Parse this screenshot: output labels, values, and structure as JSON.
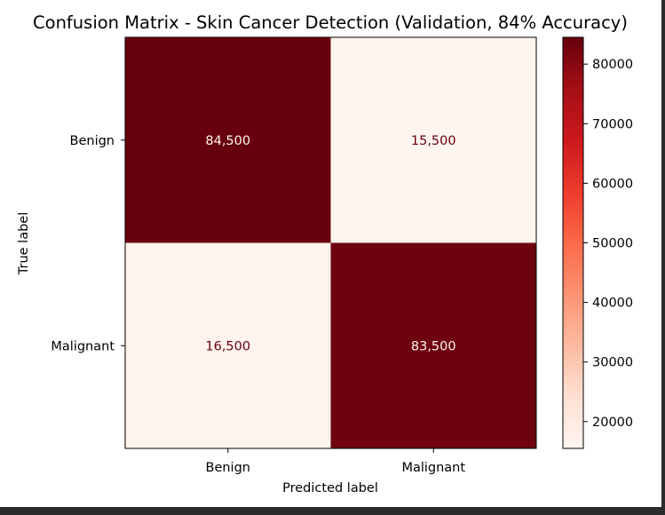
{
  "chart_data": {
    "type": "heatmap",
    "title": "Confusion Matrix - Skin Cancer Detection (Validation, 84% Accuracy)",
    "xlabel": "Predicted label",
    "ylabel": "True label",
    "x_categories": [
      "Benign",
      "Malignant"
    ],
    "y_categories": [
      "Benign",
      "Malignant"
    ],
    "values": [
      [
        84500,
        15500
      ],
      [
        16500,
        83500
      ]
    ],
    "cell_labels": [
      [
        "84,500",
        "15,500"
      ],
      [
        "16,500",
        "83,500"
      ]
    ],
    "colormap": "Reds",
    "colorbar": {
      "range": [
        15500,
        84500
      ],
      "ticks": [
        20000,
        30000,
        40000,
        50000,
        60000,
        70000,
        80000
      ],
      "tick_labels": [
        "20000",
        "30000",
        "40000",
        "50000",
        "60000",
        "70000",
        "80000"
      ]
    },
    "colors": {
      "high": "#67000d",
      "low": "#fff5f0",
      "text_on_dark": "#fff5f0",
      "text_on_light": "#67000d"
    }
  }
}
